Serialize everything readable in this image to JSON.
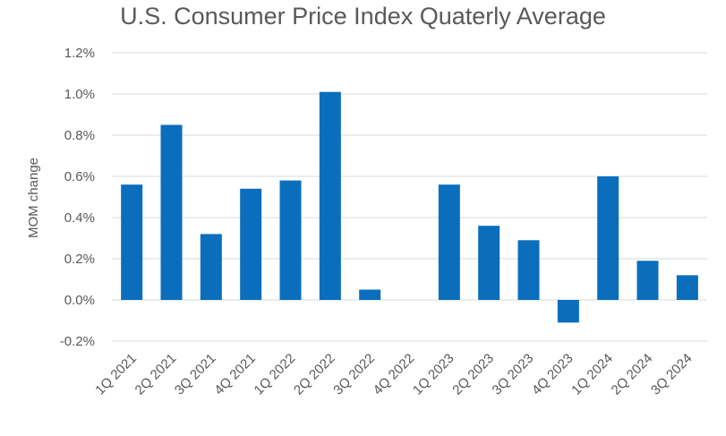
{
  "chart_data": {
    "type": "bar",
    "title": "U.S. Consumer Price Index Quaterly Average",
    "xlabel": "",
    "ylabel": "MOM change",
    "ylim": [
      -0.2,
      1.2
    ],
    "yticks": [
      -0.2,
      0.0,
      0.2,
      0.4,
      0.6,
      0.8,
      1.0,
      1.2
    ],
    "ytick_labels": [
      "-0.2%",
      "0.0%",
      "0.2%",
      "0.4%",
      "0.6%",
      "0.8%",
      "1.0%",
      "1.2%"
    ],
    "grid": true,
    "bar_color": "#0a6ebd",
    "categories": [
      "1Q 2021",
      "2Q 2021",
      "3Q 2021",
      "4Q 2021",
      "1Q 2022",
      "2Q 2022",
      "3Q 2022",
      "4Q 2022",
      "1Q 2023",
      "2Q 2023",
      "3Q 2023",
      "4Q 2023",
      "1Q 2024",
      "2Q 2024",
      "3Q 2024"
    ],
    "values": [
      0.56,
      0.85,
      0.32,
      0.54,
      0.58,
      1.01,
      0.05,
      0.0,
      0.56,
      0.36,
      0.29,
      -0.11,
      0.6,
      0.19,
      0.12
    ]
  }
}
